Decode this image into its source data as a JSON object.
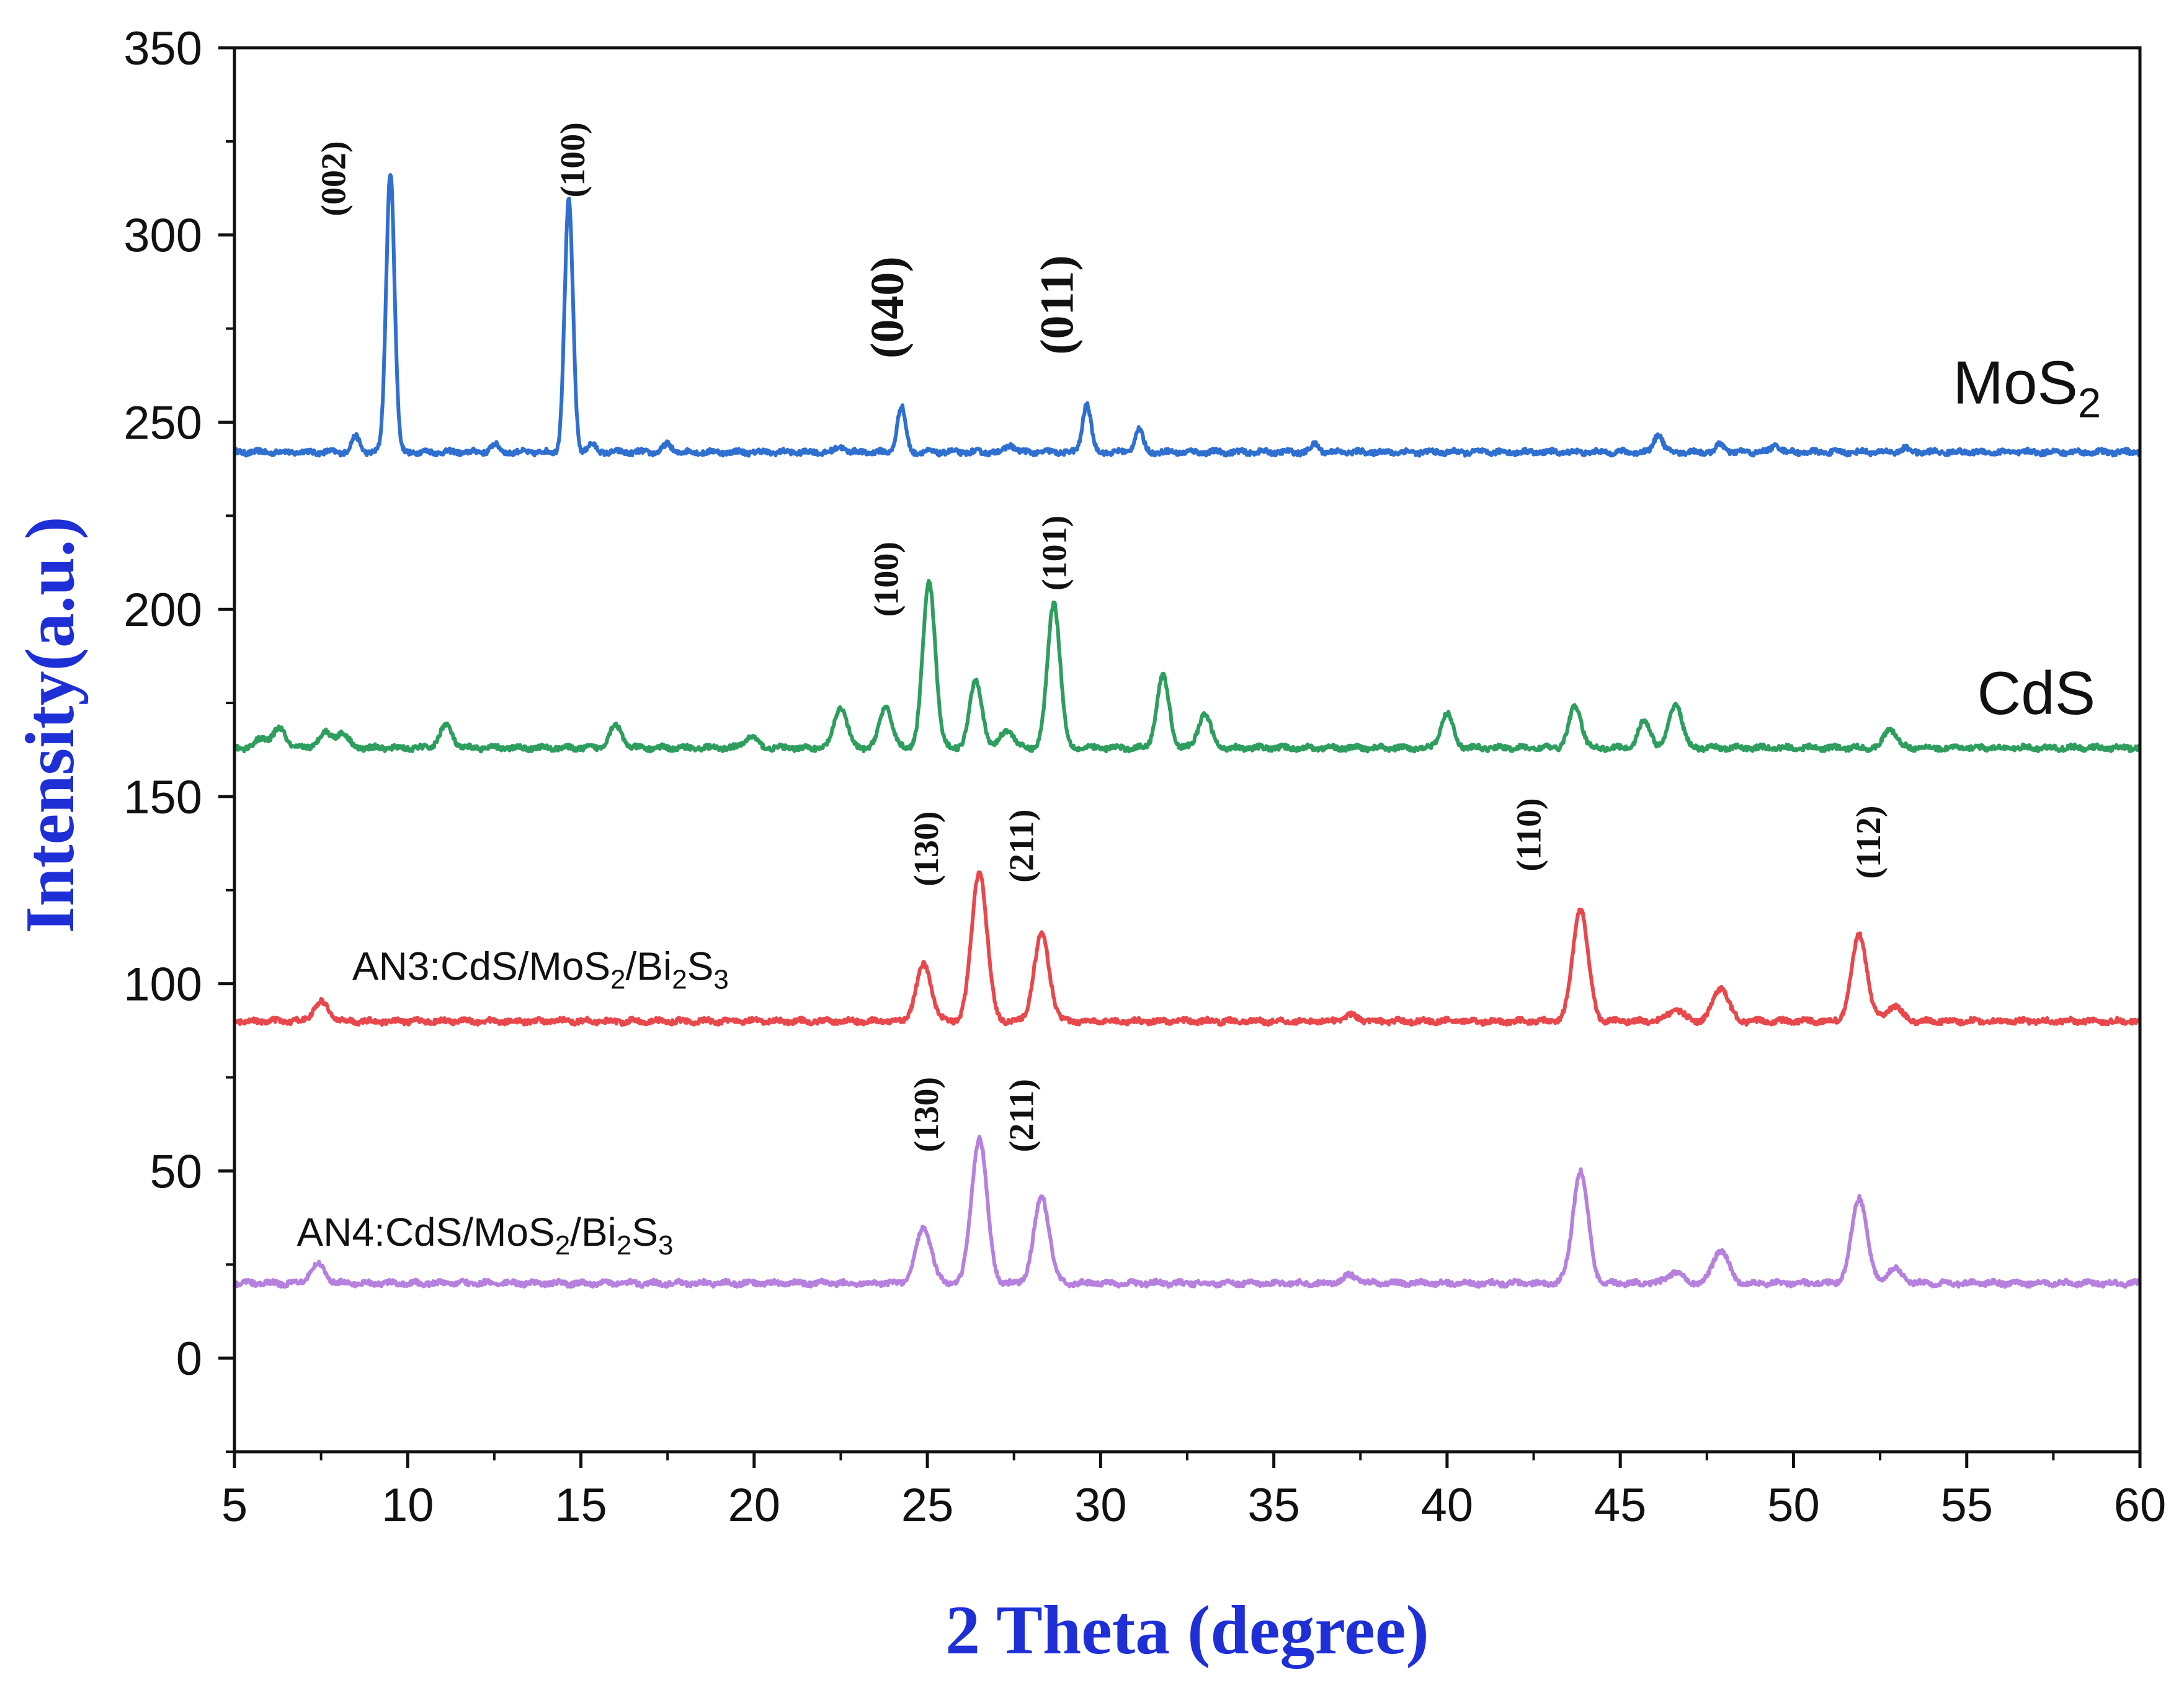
{
  "chart_data": {
    "type": "line",
    "title": "",
    "xlabel": "2 Theta (degree)",
    "ylabel": "Intensity(a.u.)",
    "xlim": [
      5,
      60
    ],
    "ylim": [
      -25,
      350
    ],
    "xticks": [
      5,
      10,
      15,
      20,
      25,
      30,
      35,
      40,
      45,
      50,
      55,
      60
    ],
    "yticks": [
      0,
      50,
      100,
      150,
      200,
      250,
      300,
      350
    ],
    "axis_title_color": "#1f2fd6",
    "grid": false,
    "series": [
      {
        "name": "MoS2",
        "label_parts": [
          {
            "t": "MoS"
          },
          {
            "t": "2",
            "sub": true
          }
        ],
        "color": "#2f6fd0",
        "baseline": 242,
        "peaks": [
          [
            8.5,
            4
          ],
          [
            9.5,
            75
          ],
          [
            12.5,
            2
          ],
          [
            14.65,
            67
          ],
          [
            15.3,
            2
          ],
          [
            17.5,
            2
          ],
          [
            22.5,
            1.5
          ],
          [
            24.25,
            12
          ],
          [
            27.4,
            2
          ],
          [
            29.6,
            13
          ],
          [
            31.1,
            6
          ],
          [
            36.2,
            2
          ],
          [
            46.1,
            5
          ],
          [
            47.9,
            2
          ],
          [
            49.5,
            2
          ],
          [
            53.2,
            1
          ]
        ],
        "width": 0.12,
        "label_x": 54.6,
        "label_y": 255,
        "label_size": 98
      },
      {
        "name": "CdS",
        "label_parts": [
          {
            "t": "CdS"
          }
        ],
        "color": "#2e9e5f",
        "baseline": 163,
        "peaks": [
          [
            5.8,
            2.5
          ],
          [
            6.3,
            5
          ],
          [
            7.6,
            4
          ],
          [
            8.1,
            4
          ],
          [
            11.1,
            6
          ],
          [
            16.0,
            6
          ],
          [
            19.9,
            3
          ],
          [
            22.5,
            11
          ],
          [
            23.8,
            11
          ],
          [
            25.05,
            44
          ],
          [
            26.4,
            18
          ],
          [
            27.3,
            5
          ],
          [
            28.65,
            39
          ],
          [
            31.8,
            19
          ],
          [
            33.0,
            9
          ],
          [
            40.0,
            9
          ],
          [
            43.7,
            11
          ],
          [
            45.7,
            7
          ],
          [
            46.6,
            12
          ],
          [
            52.8,
            5
          ]
        ],
        "width": 0.18,
        "label_x": 55.3,
        "label_y": 172,
        "label_size": 98
      },
      {
        "name": "AN3:CdS/MoS2/Bi2S3",
        "label_parts": [
          {
            "t": "AN3:CdS/MoS"
          },
          {
            "t": "2",
            "sub": true
          },
          {
            "t": "/Bi"
          },
          {
            "t": "2",
            "sub": true
          },
          {
            "t": "S"
          },
          {
            "t": "3",
            "sub": true
          }
        ],
        "color": "#e8474c",
        "baseline": 90,
        "peaks": [
          [
            7.5,
            5
          ],
          [
            24.9,
            15
          ],
          [
            26.5,
            40
          ],
          [
            28.3,
            23
          ],
          [
            37.2,
            1.5
          ],
          [
            43.85,
            30
          ],
          [
            46.6,
            3
          ],
          [
            47.9,
            9
          ],
          [
            51.9,
            23
          ],
          [
            52.9,
            4
          ]
        ],
        "width": 0.22,
        "label_x": 8.4,
        "label_y": 101,
        "label_size": 64
      },
      {
        "name": "AN4:CdS/MoS2/Bi2S3",
        "label_parts": [
          {
            "t": "AN4:CdS/MoS"
          },
          {
            "t": "2",
            "sub": true
          },
          {
            "t": "/Bi"
          },
          {
            "t": "2",
            "sub": true
          },
          {
            "t": "S"
          },
          {
            "t": "3",
            "sub": true
          }
        ],
        "color": "#b680de",
        "baseline": 20,
        "peaks": [
          [
            7.4,
            5
          ],
          [
            24.9,
            15
          ],
          [
            26.5,
            39
          ],
          [
            28.3,
            23
          ],
          [
            37.2,
            2
          ],
          [
            43.85,
            30
          ],
          [
            46.6,
            3
          ],
          [
            47.9,
            9
          ],
          [
            51.9,
            23
          ],
          [
            52.9,
            4
          ]
        ],
        "width": 0.22,
        "label_x": 6.8,
        "label_y": 30,
        "label_size": 64
      }
    ],
    "annotations": [
      {
        "text": "(002)",
        "x": 8.2,
        "y": 305,
        "size": 56
      },
      {
        "text": "(100)",
        "x": 15.1,
        "y": 310,
        "size": 56
      },
      {
        "text": "(040)",
        "x": 24.3,
        "y": 267,
        "size": 76
      },
      {
        "text": "(011)",
        "x": 29.2,
        "y": 268,
        "size": 76
      },
      {
        "text": "(100)",
        "x": 24.15,
        "y": 198,
        "size": 56
      },
      {
        "text": "(101)",
        "x": 29.0,
        "y": 205,
        "size": 56
      },
      {
        "text": "(130)",
        "x": 25.3,
        "y": 126,
        "size": 56
      },
      {
        "text": "(211)",
        "x": 28.05,
        "y": 127,
        "size": 56
      },
      {
        "text": "(110)",
        "x": 42.7,
        "y": 130,
        "size": 56
      },
      {
        "text": "(112)",
        "x": 52.5,
        "y": 128,
        "size": 56
      },
      {
        "text": "(130)",
        "x": 25.3,
        "y": 55,
        "size": 56
      },
      {
        "text": "(211)",
        "x": 28.05,
        "y": 55,
        "size": 56
      }
    ]
  }
}
